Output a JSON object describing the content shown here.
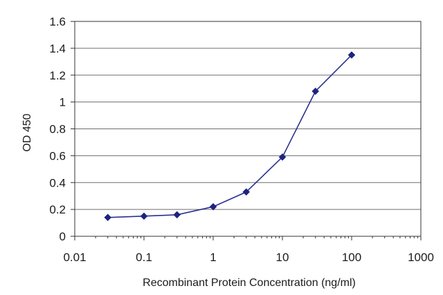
{
  "chart_data": {
    "type": "line",
    "title": "",
    "xlabel": "Recombinant Protein Concentration (ng/ml)",
    "ylabel": "OD 450",
    "xscale": "log",
    "xlim": [
      0.01,
      1000
    ],
    "ylim": [
      0,
      1.6
    ],
    "xticks": [
      0.01,
      0.1,
      1,
      10,
      100,
      1000
    ],
    "xtick_labels": [
      "0.01",
      "0.1",
      "1",
      "10",
      "100",
      "1000"
    ],
    "yticks": [
      0,
      0.2,
      0.4,
      0.6,
      0.8,
      1,
      1.2,
      1.4,
      1.6
    ],
    "ytick_labels": [
      "0",
      "0.2",
      "0.4",
      "0.6",
      "0.8",
      "1",
      "1.2",
      "1.4",
      "1.6"
    ],
    "grid": "horizontal",
    "legend": "none",
    "series": [
      {
        "x": [
          0.03,
          0.1,
          0.3,
          1,
          3,
          10,
          30,
          100
        ],
        "y": [
          0.14,
          0.15,
          0.16,
          0.22,
          0.33,
          0.59,
          1.08,
          1.35
        ]
      }
    ],
    "colors": {
      "line": "#2b2f8f",
      "marker": "#1f2380",
      "grid": "#6e6e6e",
      "axis": "#333333"
    }
  }
}
